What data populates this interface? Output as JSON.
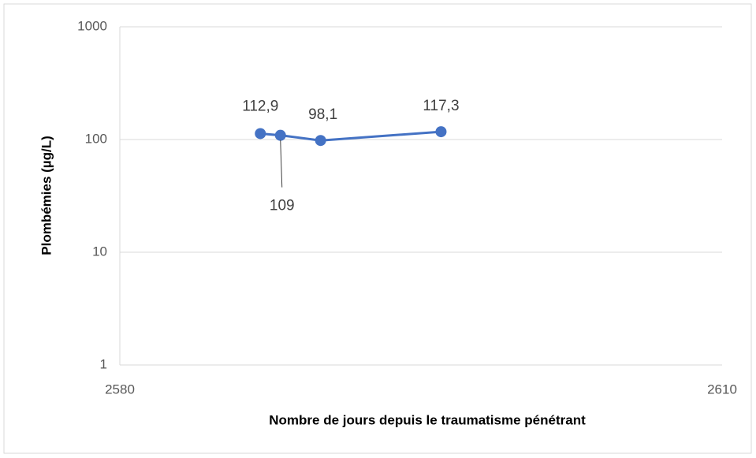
{
  "chart_data": {
    "type": "line",
    "ylabel": "Plombémies (µg/L)",
    "xlabel": "Nombre de jours depuis le traumatisme pénétrant",
    "x": [
      2587,
      2588,
      2590,
      2596
    ],
    "series": [
      {
        "name": null,
        "color": "#4472c4",
        "values": [
          112.9,
          109,
          98.1,
          117.3
        ],
        "value_labels": [
          "112,9",
          "109",
          "98,1",
          "117,3"
        ]
      }
    ],
    "xlim": [
      2580,
      2610
    ],
    "xticks": [
      2580,
      2610
    ],
    "ylim": [
      1,
      1000
    ],
    "yticks": [
      1,
      10,
      100,
      1000
    ],
    "yscale": "log",
    "grid": true
  }
}
